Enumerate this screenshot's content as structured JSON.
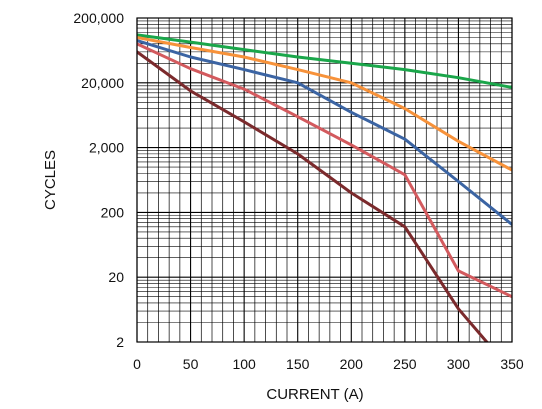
{
  "chart_data": {
    "type": "line",
    "title": "",
    "xlabel": "CURRENT (A)",
    "ylabel": "CYCLES",
    "xlim": [
      0,
      350
    ],
    "ylim": [
      2,
      200000
    ],
    "y_scale": "log",
    "grid": true,
    "x_ticks": [
      {
        "value": 0,
        "label": "0"
      },
      {
        "value": 50,
        "label": "50"
      },
      {
        "value": 100,
        "label": "100"
      },
      {
        "value": 150,
        "label": "150"
      },
      {
        "value": 200,
        "label": "200"
      },
      {
        "value": 250,
        "label": "250"
      },
      {
        "value": 300,
        "label": "300"
      },
      {
        "value": 350,
        "label": "350"
      }
    ],
    "y_ticks": [
      {
        "value": 2,
        "label": "2"
      },
      {
        "value": 20,
        "label": "20"
      },
      {
        "value": 200,
        "label": "200"
      },
      {
        "value": 2000,
        "label": "2,000"
      },
      {
        "value": 20000,
        "label": "20,000"
      },
      {
        "value": 200000,
        "label": "200,000"
      }
    ],
    "series": [
      {
        "color": "#1aa64a",
        "points": [
          [
            0,
            110000
          ],
          [
            50,
            85000
          ],
          [
            100,
            65000
          ],
          [
            150,
            50000
          ],
          [
            200,
            40000
          ],
          [
            250,
            32000
          ],
          [
            300,
            24000
          ],
          [
            350,
            17000
          ]
        ]
      },
      {
        "color": "#f7923a",
        "points": [
          [
            0,
            100000
          ],
          [
            50,
            70000
          ],
          [
            100,
            50000
          ],
          [
            150,
            32000
          ],
          [
            200,
            20000
          ],
          [
            250,
            8000
          ],
          [
            300,
            2500
          ],
          [
            350,
            900
          ]
        ]
      },
      {
        "color": "#3b64a3",
        "points": [
          [
            0,
            90000
          ],
          [
            50,
            50000
          ],
          [
            100,
            32000
          ],
          [
            150,
            20000
          ],
          [
            200,
            7000
          ],
          [
            250,
            2700
          ],
          [
            300,
            600
          ],
          [
            350,
            130
          ]
        ]
      },
      {
        "color": "#d35a5e",
        "points": [
          [
            0,
            80000
          ],
          [
            50,
            33000
          ],
          [
            100,
            16000
          ],
          [
            150,
            6000
          ],
          [
            200,
            2200
          ],
          [
            250,
            760
          ],
          [
            300,
            25
          ],
          [
            350,
            10
          ]
        ]
      },
      {
        "color": "#7b2a2c",
        "points": [
          [
            0,
            60000
          ],
          [
            50,
            15000
          ],
          [
            100,
            5000
          ],
          [
            150,
            1600
          ],
          [
            200,
            400
          ],
          [
            250,
            120
          ],
          [
            300,
            6.5
          ],
          [
            350,
            0.7
          ]
        ]
      }
    ]
  }
}
